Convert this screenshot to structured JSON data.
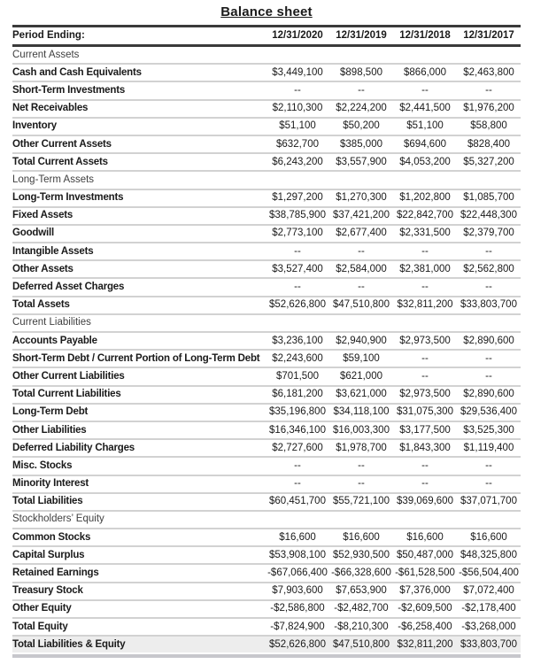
{
  "title": "Balance sheet",
  "table": {
    "header_label": "Period Ending:",
    "columns": [
      "12/31/2020",
      "12/31/2019",
      "12/31/2018",
      "12/31/2017"
    ],
    "rows": [
      {
        "type": "section",
        "label": "Current Assets",
        "values": [
          "",
          "",
          "",
          ""
        ]
      },
      {
        "type": "data",
        "label": "Cash and Cash Equivalents",
        "values": [
          "$3,449,100",
          "$898,500",
          "$866,000",
          "$2,463,800"
        ]
      },
      {
        "type": "data",
        "label": "Short-Term Investments",
        "values": [
          "--",
          "--",
          "--",
          "--"
        ]
      },
      {
        "type": "data",
        "label": "Net Receivables",
        "values": [
          "$2,110,300",
          "$2,224,200",
          "$2,441,500",
          "$1,976,200"
        ]
      },
      {
        "type": "data",
        "label": "Inventory",
        "values": [
          "$51,100",
          "$50,200",
          "$51,100",
          "$58,800"
        ]
      },
      {
        "type": "data",
        "label": "Other Current Assets",
        "values": [
          "$632,700",
          "$385,000",
          "$694,600",
          "$828,400"
        ]
      },
      {
        "type": "total",
        "label": "Total Current Assets",
        "values": [
          "$6,243,200",
          "$3,557,900",
          "$4,053,200",
          "$5,327,200"
        ]
      },
      {
        "type": "section",
        "label": "Long-Term Assets",
        "values": [
          "",
          "",
          "",
          ""
        ]
      },
      {
        "type": "data",
        "label": "Long-Term Investments",
        "values": [
          "$1,297,200",
          "$1,270,300",
          "$1,202,800",
          "$1,085,700"
        ]
      },
      {
        "type": "data",
        "label": "Fixed Assets",
        "values": [
          "$38,785,900",
          "$37,421,200",
          "$22,842,700",
          "$22,448,300"
        ]
      },
      {
        "type": "data",
        "label": "Goodwill",
        "values": [
          "$2,773,100",
          "$2,677,400",
          "$2,331,500",
          "$2,379,700"
        ]
      },
      {
        "type": "data",
        "label": "Intangible Assets",
        "values": [
          "--",
          "--",
          "--",
          "--"
        ]
      },
      {
        "type": "data",
        "label": "Other Assets",
        "values": [
          "$3,527,400",
          "$2,584,000",
          "$2,381,000",
          "$2,562,800"
        ]
      },
      {
        "type": "data",
        "label": "Deferred Asset Charges",
        "values": [
          "--",
          "--",
          "--",
          "--"
        ]
      },
      {
        "type": "total",
        "label": "Total Assets",
        "values": [
          "$52,626,800",
          "$47,510,800",
          "$32,811,200",
          "$33,803,700"
        ]
      },
      {
        "type": "section",
        "label": "Current Liabilities",
        "values": [
          "",
          "",
          "",
          ""
        ]
      },
      {
        "type": "data",
        "label": "Accounts Payable",
        "values": [
          "$3,236,100",
          "$2,940,900",
          "$2,973,500",
          "$2,890,600"
        ]
      },
      {
        "type": "data",
        "label": "Short-Term Debt / Current Portion of Long-Term Debt",
        "values": [
          "$2,243,600",
          "$59,100",
          "--",
          "--"
        ]
      },
      {
        "type": "data",
        "label": "Other Current Liabilities",
        "values": [
          "$701,500",
          "$621,000",
          "--",
          "--"
        ]
      },
      {
        "type": "total",
        "label": "Total Current Liabilities",
        "values": [
          "$6,181,200",
          "$3,621,000",
          "$2,973,500",
          "$2,890,600"
        ]
      },
      {
        "type": "data",
        "label": "Long-Term Debt",
        "values": [
          "$35,196,800",
          "$34,118,100",
          "$31,075,300",
          "$29,536,400"
        ]
      },
      {
        "type": "data",
        "label": "Other Liabilities",
        "values": [
          "$16,346,100",
          "$16,003,300",
          "$3,177,500",
          "$3,525,300"
        ]
      },
      {
        "type": "data",
        "label": "Deferred Liability Charges",
        "values": [
          "$2,727,600",
          "$1,978,700",
          "$1,843,300",
          "$1,119,400"
        ]
      },
      {
        "type": "data",
        "label": "Misc. Stocks",
        "values": [
          "--",
          "--",
          "--",
          "--"
        ]
      },
      {
        "type": "data",
        "label": "Minority Interest",
        "values": [
          "--",
          "--",
          "--",
          "--"
        ]
      },
      {
        "type": "total",
        "label": "Total Liabilities",
        "values": [
          "$60,451,700",
          "$55,721,100",
          "$39,069,600",
          "$37,071,700"
        ]
      },
      {
        "type": "section",
        "label": "Stockholders’ Equity",
        "values": [
          "",
          "",
          "",
          ""
        ]
      },
      {
        "type": "data",
        "label": "Common Stocks",
        "values": [
          "$16,600",
          "$16,600",
          "$16,600",
          "$16,600"
        ]
      },
      {
        "type": "data",
        "label": "Capital Surplus",
        "values": [
          "$53,908,100",
          "$52,930,500",
          "$50,487,000",
          "$48,325,800"
        ]
      },
      {
        "type": "data",
        "label": "Retained Earnings",
        "values": [
          "-$67,066,400",
          "-$66,328,600",
          "-$61,528,500",
          "-$56,504,400"
        ]
      },
      {
        "type": "data",
        "label": "Treasury Stock",
        "values": [
          "$7,903,600",
          "$7,653,900",
          "$7,376,000",
          "$7,072,400"
        ]
      },
      {
        "type": "data",
        "label": "Other Equity",
        "values": [
          "-$2,586,800",
          "-$2,482,700",
          "-$2,609,500",
          "-$2,178,400"
        ]
      },
      {
        "type": "total",
        "label": "Total Equity",
        "values": [
          "-$7,824,900",
          "-$8,210,300",
          "-$6,258,400",
          "-$3,268,000"
        ]
      },
      {
        "type": "grand",
        "label": "Total Liabilities & Equity",
        "values": [
          "$52,626,800",
          "$47,510,800",
          "$32,811,200",
          "$33,803,700"
        ]
      }
    ]
  },
  "colors": {
    "header_border": "#3b3b3b",
    "row_divider": "#d2d2d2",
    "grand_row_bg": "#ededed",
    "bottom_border": "#c7c7cc"
  }
}
